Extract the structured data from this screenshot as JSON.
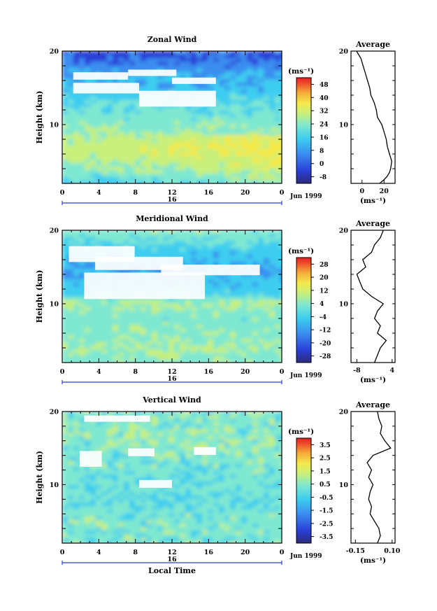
{
  "chart_data": [
    {
      "type": "heatmap",
      "title": "Zonal Wind",
      "ylabel": "Height (km)",
      "xlabel": "",
      "x_ticks": [
        "0",
        "4",
        "8",
        "12",
        "16",
        "20",
        "0"
      ],
      "y_ticks": [
        "20",
        "10"
      ],
      "xlim": [
        0,
        24
      ],
      "ylim": [
        2,
        20
      ],
      "day_label": "16",
      "month_label": "Jun 1999",
      "unit": "(ms⁻¹)",
      "colorbar": {
        "ticks": [
          "48",
          "40",
          "32",
          "24",
          "16",
          "8",
          "0",
          "-8"
        ],
        "min": -12,
        "max": 52
      },
      "profile": {
        "title": "Average",
        "x_ticks": [
          "0",
          "20"
        ],
        "xlim": [
          -10,
          30
        ],
        "xlabel": "(ms⁻¹)",
        "y_ticks": [
          "20",
          "10"
        ],
        "height": [
          2,
          2.5,
          3,
          3.5,
          4,
          5,
          6,
          7,
          8,
          9,
          10,
          11,
          12,
          13,
          14,
          15,
          16,
          17,
          18,
          19,
          20
        ],
        "values": [
          16,
          20,
          23,
          25,
          26,
          27,
          25,
          23,
          22,
          20,
          18,
          14,
          13,
          11,
          8,
          7,
          5,
          3,
          1,
          -1,
          -5
        ]
      }
    },
    {
      "type": "heatmap",
      "title": "Meridional Wind",
      "ylabel": "Height (km)",
      "xlabel": "",
      "x_ticks": [
        "0",
        "4",
        "8",
        "12",
        "16",
        "20",
        "0"
      ],
      "y_ticks": [
        "20",
        "10"
      ],
      "xlim": [
        0,
        24
      ],
      "ylim": [
        2,
        20
      ],
      "day_label": "16",
      "month_label": "Jun 1999",
      "unit": "(ms⁻¹)",
      "colorbar": {
        "ticks": [
          "28",
          "20",
          "12",
          "4",
          "-4",
          "-12",
          "-20",
          "-28"
        ],
        "min": -32,
        "max": 32
      },
      "profile": {
        "title": "Average",
        "x_ticks": [
          "-8",
          "4"
        ],
        "xlim": [
          -10,
          5
        ],
        "xlabel": "(ms⁻¹)",
        "y_ticks": [
          "20",
          "10"
        ],
        "height": [
          2,
          3,
          4,
          5,
          6,
          7,
          8,
          9,
          10,
          11,
          12,
          13,
          14,
          15,
          16,
          17,
          18,
          19,
          20
        ],
        "values": [
          -2,
          -1,
          0,
          2,
          -1,
          0,
          -2,
          -1,
          1,
          -3,
          -6,
          -7,
          -8,
          -5,
          -6,
          -3,
          -2,
          0,
          1
        ]
      }
    },
    {
      "type": "heatmap",
      "title": "Vertical Wind",
      "ylabel": "Height (km)",
      "xlabel": "Local Time",
      "x_ticks": [
        "0",
        "4",
        "8",
        "12",
        "16",
        "20",
        "0"
      ],
      "y_ticks": [
        "20",
        "10"
      ],
      "xlim": [
        0,
        24
      ],
      "ylim": [
        2,
        20
      ],
      "day_label": "16",
      "month_label": "Jun 1999",
      "unit": "(ms⁻¹)",
      "colorbar": {
        "ticks": [
          "3.5",
          "2.5",
          "1.5",
          "0.5",
          "-0.5",
          "-1.5",
          "-2.5",
          "-3.5"
        ],
        "min": -4,
        "max": 4
      },
      "profile": {
        "title": "Average",
        "x_ticks": [
          "-0.15",
          "0.10"
        ],
        "xlim": [
          -0.18,
          0.12
        ],
        "xlabel": "(ms⁻¹)",
        "y_ticks": [
          "20",
          "10"
        ],
        "height": [
          2,
          3,
          4,
          5,
          6,
          7,
          8,
          9,
          10,
          11,
          12,
          13,
          14,
          15,
          16,
          17,
          18,
          19,
          20
        ],
        "values": [
          0.0,
          0.02,
          0.01,
          -0.02,
          -0.05,
          -0.04,
          -0.06,
          -0.05,
          -0.03,
          -0.06,
          -0.04,
          -0.07,
          -0.03,
          0.09,
          0.05,
          0.02,
          0.03,
          0.01,
          0.0
        ]
      }
    }
  ]
}
